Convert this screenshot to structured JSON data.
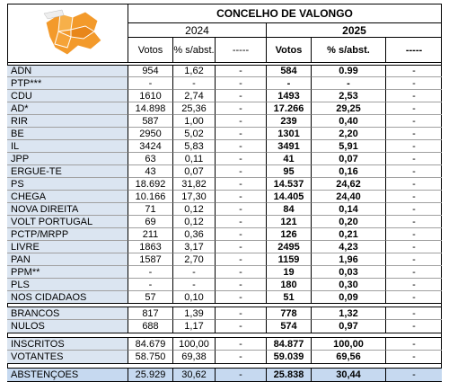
{
  "header": {
    "title": "CONCELHO DE VALONGO",
    "years": [
      "2024",
      "2025"
    ],
    "columns": [
      "Votos",
      "% s/abst.",
      "-----",
      "Votos",
      "% s/abst.",
      "-----"
    ]
  },
  "table": {
    "sections": [
      [
        [
          "ADN",
          "954",
          "1,62",
          "-",
          "584",
          "0.99",
          "-"
        ],
        [
          "PTP***",
          "-",
          "-",
          "-",
          "-",
          "-",
          "-"
        ],
        [
          "CDU",
          "1610",
          "2,74",
          "-",
          "1493",
          "2,53",
          "-"
        ],
        [
          "AD*",
          "14.898",
          "25,36",
          "-",
          "17.266",
          "29,25",
          "-"
        ],
        [
          "RIR",
          "587",
          "1,00",
          "-",
          "239",
          "0,40",
          "-"
        ],
        [
          "BE",
          "2950",
          "5,02",
          "-",
          "1301",
          "2,20",
          "-"
        ],
        [
          "IL",
          "3424",
          "5,83",
          "-",
          "3491",
          "5,91",
          "-"
        ],
        [
          "JPP",
          "63",
          "0,11",
          "-",
          "41",
          "0,07",
          "-"
        ],
        [
          "ERGUE-TE",
          "43",
          "0,07",
          "-",
          "95",
          "0,16",
          "-"
        ],
        [
          "PS",
          "18.692",
          "31,82",
          "-",
          "14.537",
          "24,62",
          "-"
        ],
        [
          "CHEGA",
          "10.166",
          "17,30",
          "-",
          "14.405",
          "24,40",
          "-"
        ],
        [
          "NOVA DIREITA",
          "71",
          "0,12",
          "-",
          "84",
          "0,14",
          "-"
        ],
        [
          "VOLT PORTUGAL",
          "69",
          "0,12",
          "-",
          "121",
          "0,20",
          "-"
        ],
        [
          "PCTP/MRPP",
          "211",
          "0,36",
          "-",
          "126",
          "0,21",
          "-"
        ],
        [
          "LIVRE",
          "1863",
          "3,17",
          "-",
          "2495",
          "4,23",
          "-"
        ],
        [
          "PAN",
          "1587",
          "2,70",
          "-",
          "1159",
          "1,96",
          "-"
        ],
        [
          "PPM**",
          "-",
          "-",
          "-",
          "19",
          "0,03",
          "-"
        ],
        [
          "PLS",
          "-",
          "-",
          "-",
          "180",
          "0,30",
          "-"
        ],
        [
          "NOS CIDADAOS",
          "57",
          "0,10",
          "-",
          "51",
          "0,09",
          "-"
        ]
      ],
      [
        [
          "BRANCOS",
          "817",
          "1,39",
          "-",
          "778",
          "1,32",
          "-"
        ],
        [
          "NULOS",
          "688",
          "1,17",
          "-",
          "574",
          "0,97",
          "-"
        ]
      ],
      [
        [
          "INSCRITOS",
          "84.679",
          "100,00",
          "-",
          "84.877",
          "100,00",
          "-"
        ],
        [
          "VOTANTES",
          "58.750",
          "69,38",
          "-",
          "59.039",
          "69,56",
          "-"
        ]
      ],
      [
        [
          "ABSTENÇOES",
          "25.929",
          "30,62",
          "-",
          "25.838",
          "30,44",
          "-"
        ]
      ]
    ]
  }
}
